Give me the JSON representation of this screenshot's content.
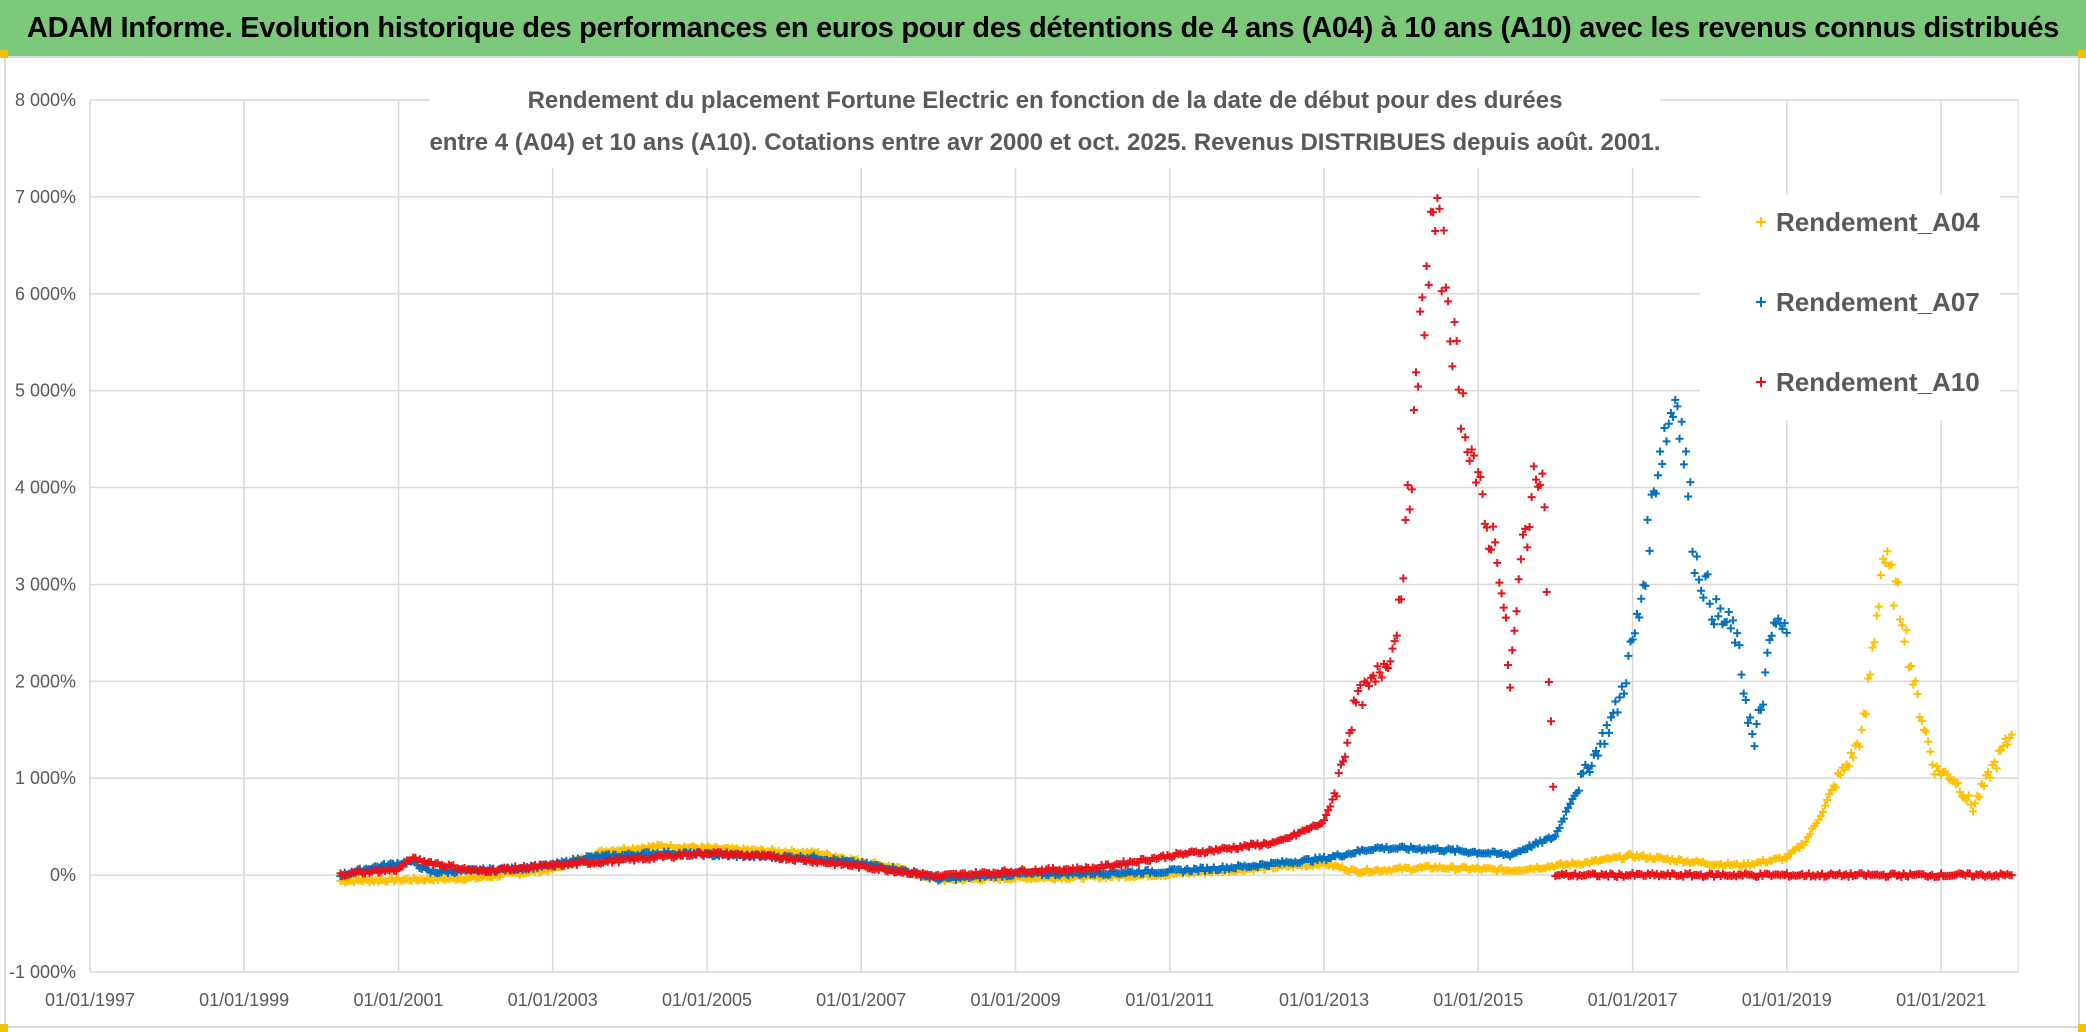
{
  "header": {
    "banner_title": "ADAM Informe. Evolution historique des performances en euros pour des détentions de 4 ans (A04) à 10 ans (A10) avec les revenus connus distribués"
  },
  "chart_data": {
    "type": "scatter",
    "title_line1": "Rendement du placement Fortune Electric  en fonction de la date de début pour des durées",
    "title_line2": "entre 4 (A04) et 10 ans (A10). Cotations entre avr 2000 et oct. 2025. Revenus DISTRIBUES depuis août. 2001.",
    "xlabel": "",
    "ylabel": "",
    "x_axis": {
      "type": "date",
      "min": "1997-01-01",
      "max": "2021-12-31",
      "ticks": [
        "01/01/1997",
        "01/01/1999",
        "01/01/2001",
        "01/01/2003",
        "01/01/2005",
        "01/01/2007",
        "01/01/2009",
        "01/01/2011",
        "01/01/2013",
        "01/01/2015",
        "01/01/2017",
        "01/01/2019",
        "01/01/2021"
      ]
    },
    "y_axis": {
      "unit": "%",
      "min": -1000,
      "max": 8000,
      "ticks": [
        -1000,
        0,
        1000,
        2000,
        3000,
        4000,
        5000,
        6000,
        7000,
        8000
      ],
      "tick_labels": [
        "-1 000%",
        "0%",
        "1 000%",
        "2 000%",
        "3 000%",
        "4 000%",
        "5 000%",
        "6 000%",
        "7 000%",
        "8 000%"
      ]
    },
    "grid": true,
    "legend_position": "top-right",
    "marker": "+",
    "series": [
      {
        "name": "Rendement_A04",
        "color": "#ffc000",
        "points": [
          [
            "2000-04-01",
            -60
          ],
          [
            "2001-01-01",
            -50
          ],
          [
            "2002-01-01",
            -30
          ],
          [
            "2003-01-01",
            60
          ],
          [
            "2003-09-01",
            250
          ],
          [
            "2004-06-01",
            300
          ],
          [
            "2005-06-01",
            260
          ],
          [
            "2006-06-01",
            230
          ],
          [
            "2007-06-01",
            80
          ],
          [
            "2008-01-01",
            -50
          ],
          [
            "2009-01-01",
            -30
          ],
          [
            "2010-01-01",
            -20
          ],
          [
            "2011-01-01",
            10
          ],
          [
            "2012-01-01",
            60
          ],
          [
            "2013-01-01",
            120
          ],
          [
            "2013-06-01",
            40
          ],
          [
            "2014-06-01",
            80
          ],
          [
            "2015-06-01",
            50
          ],
          [
            "2016-06-01",
            130
          ],
          [
            "2017-01-01",
            200
          ],
          [
            "2018-01-01",
            120
          ],
          [
            "2018-06-01",
            100
          ],
          [
            "2019-01-01",
            180
          ],
          [
            "2019-04-01",
            350
          ],
          [
            "2019-07-01",
            700
          ],
          [
            "2019-09-01",
            1000
          ],
          [
            "2019-11-01",
            1200
          ],
          [
            "2020-01-01",
            1500
          ],
          [
            "2020-04-01",
            3300
          ],
          [
            "2020-07-01",
            2700
          ],
          [
            "2020-09-01",
            1900
          ],
          [
            "2020-12-01",
            1100
          ],
          [
            "2021-03-01",
            1000
          ],
          [
            "2021-06-01",
            700
          ],
          [
            "2021-09-01",
            1100
          ],
          [
            "2021-12-01",
            1450
          ]
        ]
      },
      {
        "name": "Rendement_A07",
        "color": "#0070c0",
        "points": [
          [
            "2000-04-01",
            0
          ],
          [
            "2000-09-01",
            80
          ],
          [
            "2001-03-01",
            140
          ],
          [
            "2001-06-01",
            30
          ],
          [
            "2002-06-01",
            60
          ],
          [
            "2003-01-01",
            100
          ],
          [
            "2003-06-01",
            180
          ],
          [
            "2004-06-01",
            230
          ],
          [
            "2005-06-01",
            200
          ],
          [
            "2006-06-01",
            180
          ],
          [
            "2007-06-01",
            70
          ],
          [
            "2008-01-01",
            -40
          ],
          [
            "2009-01-01",
            10
          ],
          [
            "2010-01-01",
            20
          ],
          [
            "2011-01-01",
            40
          ],
          [
            "2012-01-01",
            90
          ],
          [
            "2013-01-01",
            170
          ],
          [
            "2013-09-01",
            280
          ],
          [
            "2014-06-01",
            270
          ],
          [
            "2015-06-01",
            210
          ],
          [
            "2015-10-01",
            320
          ],
          [
            "2016-01-01",
            400
          ],
          [
            "2016-04-01",
            850
          ],
          [
            "2016-08-01",
            1350
          ],
          [
            "2016-11-01",
            1800
          ],
          [
            "2017-02-01",
            2700
          ],
          [
            "2017-05-01",
            4300
          ],
          [
            "2017-08-01",
            5000
          ],
          [
            "2017-11-01",
            3200
          ],
          [
            "2018-02-01",
            2700
          ],
          [
            "2018-05-01",
            2500
          ],
          [
            "2018-08-01",
            1300
          ],
          [
            "2018-11-01",
            2600
          ],
          [
            "2019-01-01",
            2500
          ]
        ]
      },
      {
        "name": "Rendement_A10",
        "color": "#e8131a",
        "points": [
          [
            "2000-04-01",
            10
          ],
          [
            "2001-01-01",
            60
          ],
          [
            "2001-03-01",
            170
          ],
          [
            "2002-01-01",
            40
          ],
          [
            "2003-01-01",
            100
          ],
          [
            "2004-01-01",
            160
          ],
          [
            "2005-01-01",
            230
          ],
          [
            "2006-01-01",
            180
          ],
          [
            "2007-01-01",
            90
          ],
          [
            "2008-01-01",
            -10
          ],
          [
            "2009-01-01",
            40
          ],
          [
            "2010-01-01",
            70
          ],
          [
            "2011-01-01",
            200
          ],
          [
            "2012-01-01",
            300
          ],
          [
            "2012-06-01",
            340
          ],
          [
            "2013-01-01",
            550
          ],
          [
            "2013-03-01",
            900
          ],
          [
            "2013-06-01",
            1800
          ],
          [
            "2013-09-01",
            2000
          ],
          [
            "2013-12-01",
            2400
          ],
          [
            "2014-02-01",
            3700
          ],
          [
            "2014-04-01",
            5500
          ],
          [
            "2014-06-01",
            6800
          ],
          [
            "2014-08-01",
            6200
          ],
          [
            "2014-10-01",
            5000
          ],
          [
            "2014-12-01",
            4400
          ],
          [
            "2015-02-01",
            3600
          ],
          [
            "2015-04-01",
            3400
          ],
          [
            "2015-06-01",
            2000
          ],
          [
            "2015-08-01",
            3400
          ],
          [
            "2015-11-01",
            4400
          ],
          [
            "2016-01-01",
            0
          ],
          [
            "2018-01-01",
            0
          ],
          [
            "2020-01-01",
            0
          ],
          [
            "2021-12-01",
            0
          ]
        ]
      }
    ]
  }
}
